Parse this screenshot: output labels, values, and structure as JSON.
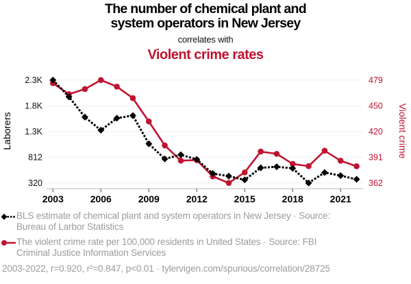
{
  "header": {
    "title_line1": "The number of chemical plant and",
    "title_line2": "system operators in New Jersey",
    "connector": "correlates with",
    "title2": "Violent crime rates"
  },
  "legend": [
    {
      "icon": "black-dotted-diamond-line-icon",
      "lines": [
        "BLS estimate of chemical plant and system operators in New Jersey · Source:",
        "Bureau of Larbor Statistics"
      ]
    },
    {
      "icon": "red-solid-circle-line-icon",
      "lines": [
        "The violent crime rate per 100,000 residents in United States · Source: FBI",
        "Criminal Justice Information Services"
      ]
    }
  ],
  "footer": {
    "stats": "2003-2022, r=0.920, r²=0.847, p<0.01 · tylervigen.com/spurious/correlation/28725"
  },
  "colors": {
    "series1": "#000000",
    "series2": "#c0132f",
    "legend_text": "#9b9b9b",
    "grid": "#efefef",
    "axis": "#c8c8c8"
  },
  "chart_data": {
    "type": "line",
    "title": "The number of chemical plant and system operators in New Jersey",
    "subtitle": "correlates with",
    "title2": "Violent crime rates",
    "xlabel": "",
    "ylabel_left": "Laborers",
    "ylabel_right": "Violent crime",
    "x": [
      2003,
      2004,
      2005,
      2006,
      2007,
      2008,
      2009,
      2010,
      2011,
      2012,
      2013,
      2014,
      2015,
      2016,
      2017,
      2018,
      2019,
      2020,
      2021,
      2022
    ],
    "xticks": [
      2003,
      2006,
      2009,
      2012,
      2015,
      2018,
      2021
    ],
    "ylim_left": [
      320,
      2290
    ],
    "ylim_right": [
      361.6,
      479.3
    ],
    "yticks_left": {
      "values": [
        320,
        812.5,
        1305,
        1797.5,
        2290
      ],
      "labels": [
        "320",
        "812",
        "1.3K",
        "1.8K",
        "2.3K"
      ]
    },
    "yticks_right": {
      "values": [
        361.6,
        391.0,
        420.45,
        449.9,
        479.3
      ],
      "labels": [
        "362",
        "391",
        "420",
        "450",
        "479"
      ]
    },
    "grid": true,
    "legend": "bottom",
    "series": [
      {
        "name": "BLS estimate of chemical plant and system operators in New Jersey",
        "axis": "left",
        "color": "#000000",
        "line_style": "dotted",
        "marker": "diamond",
        "values": [
          2290,
          1970,
          1580,
          1330,
          1560,
          1610,
          1070,
          780,
          860,
          770,
          500,
          450,
          380,
          610,
          630,
          600,
          320,
          520,
          460,
          390
        ]
      },
      {
        "name": "The violent crime rate per 100,000 residents in United States",
        "axis": "right",
        "color": "#c0132f",
        "line_style": "solid",
        "marker": "circle",
        "values": [
          475.8,
          463.2,
          469.0,
          479.3,
          471.8,
          458.6,
          431.9,
          404.5,
          387.1,
          387.8,
          369.1,
          361.6,
          373.7,
          397.5,
          394.9,
          383.4,
          380.8,
          398.5,
          387.0,
          380.7
        ]
      }
    ]
  }
}
